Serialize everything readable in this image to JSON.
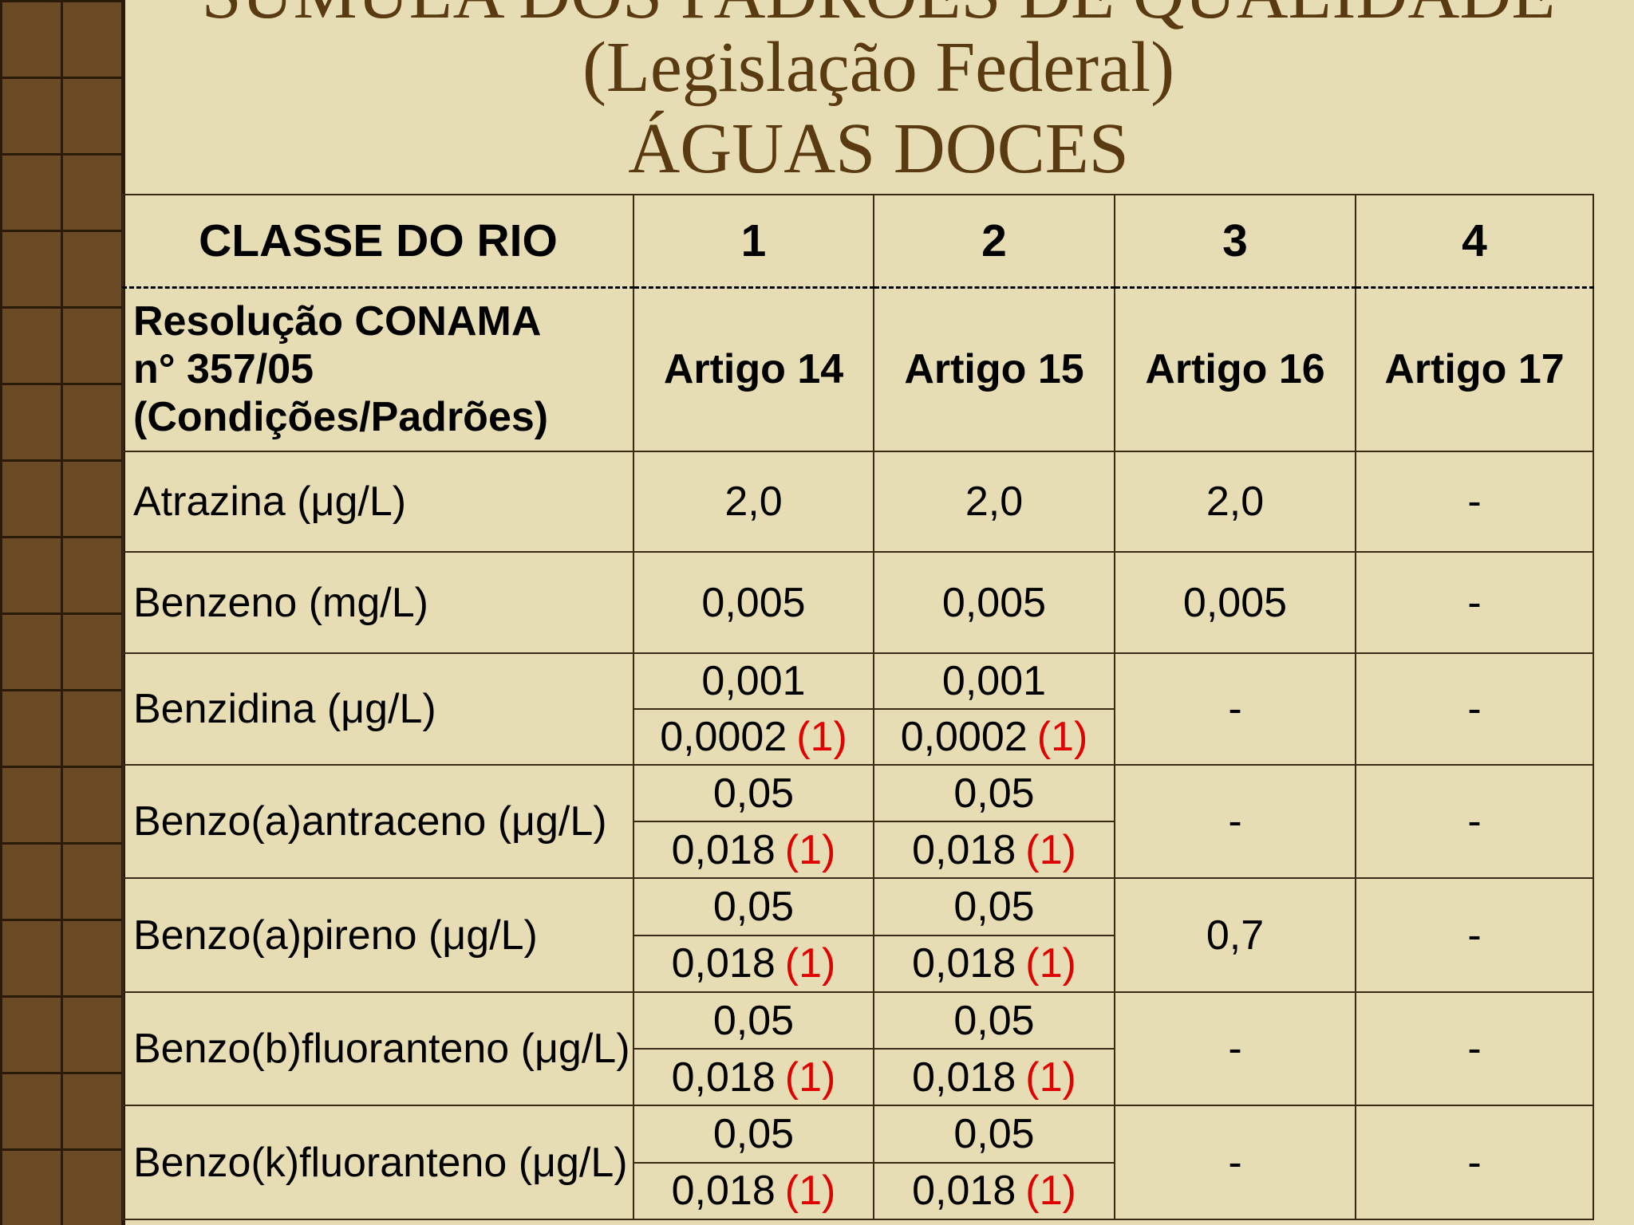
{
  "title": {
    "lines": [
      "SÚMULA DOS PADRÕES DE QUALIDADE",
      "(Legislação Federal)",
      "ÁGUAS DOCES"
    ]
  },
  "table": {
    "header": [
      "CLASSE DO RIO",
      "1",
      "2",
      "3",
      "4"
    ],
    "resolution": {
      "label": [
        "Resolução CONAMA",
        "n° 357/05",
        "(Condições/Padrões)"
      ],
      "articles": [
        "Artigo 14",
        "Artigo 15",
        "Artigo 16",
        "Artigo 17"
      ]
    },
    "rows": [
      {
        "label": "Atrazina (μg/L)",
        "cells": [
          "2,0",
          "2,0",
          "2,0",
          "-"
        ]
      },
      {
        "label": "Benzeno (mg/L)",
        "cells": [
          "0,005",
          "0,005",
          "0,005",
          "-"
        ]
      },
      {
        "label": "Benzidina (μg/L)",
        "cells": [
          [
            {
              "value": "0,001"
            },
            {
              "value": "0,0002",
              "note": "(1)"
            }
          ],
          [
            {
              "value": "0,001"
            },
            {
              "value": "0,0002",
              "note": "(1)"
            }
          ],
          "-",
          "-"
        ]
      },
      {
        "label": "Benzo(a)antraceno (μg/L)",
        "cells": [
          [
            {
              "value": "0,05"
            },
            {
              "value": "0,018",
              "note": "(1)"
            }
          ],
          [
            {
              "value": "0,05"
            },
            {
              "value": "0,018",
              "note": "(1)"
            }
          ],
          "-",
          "-"
        ]
      },
      {
        "label": "Benzo(a)pireno (μg/L)",
        "cells": [
          [
            {
              "value": "0,05"
            },
            {
              "value": "0,018",
              "note": "(1)"
            }
          ],
          [
            {
              "value": "0,05"
            },
            {
              "value": "0,018",
              "note": "(1)"
            }
          ],
          "0,7",
          "-"
        ]
      },
      {
        "label": "Benzo(b)fluoranteno (μg/L)",
        "cells": [
          [
            {
              "value": "0,05"
            },
            {
              "value": "0,018",
              "note": "(1)"
            }
          ],
          [
            {
              "value": "0,05"
            },
            {
              "value": "0,018",
              "note": "(1)"
            }
          ],
          "-",
          "-"
        ]
      },
      {
        "label": "Benzo(k)fluoranteno (μg/L)",
        "cells": [
          [
            {
              "value": "0,05"
            },
            {
              "value": "0,018",
              "note": "(1)"
            }
          ],
          [
            {
              "value": "0,05"
            },
            {
              "value": "0,018",
              "note": "(1)"
            }
          ],
          "-",
          "-"
        ]
      }
    ]
  }
}
